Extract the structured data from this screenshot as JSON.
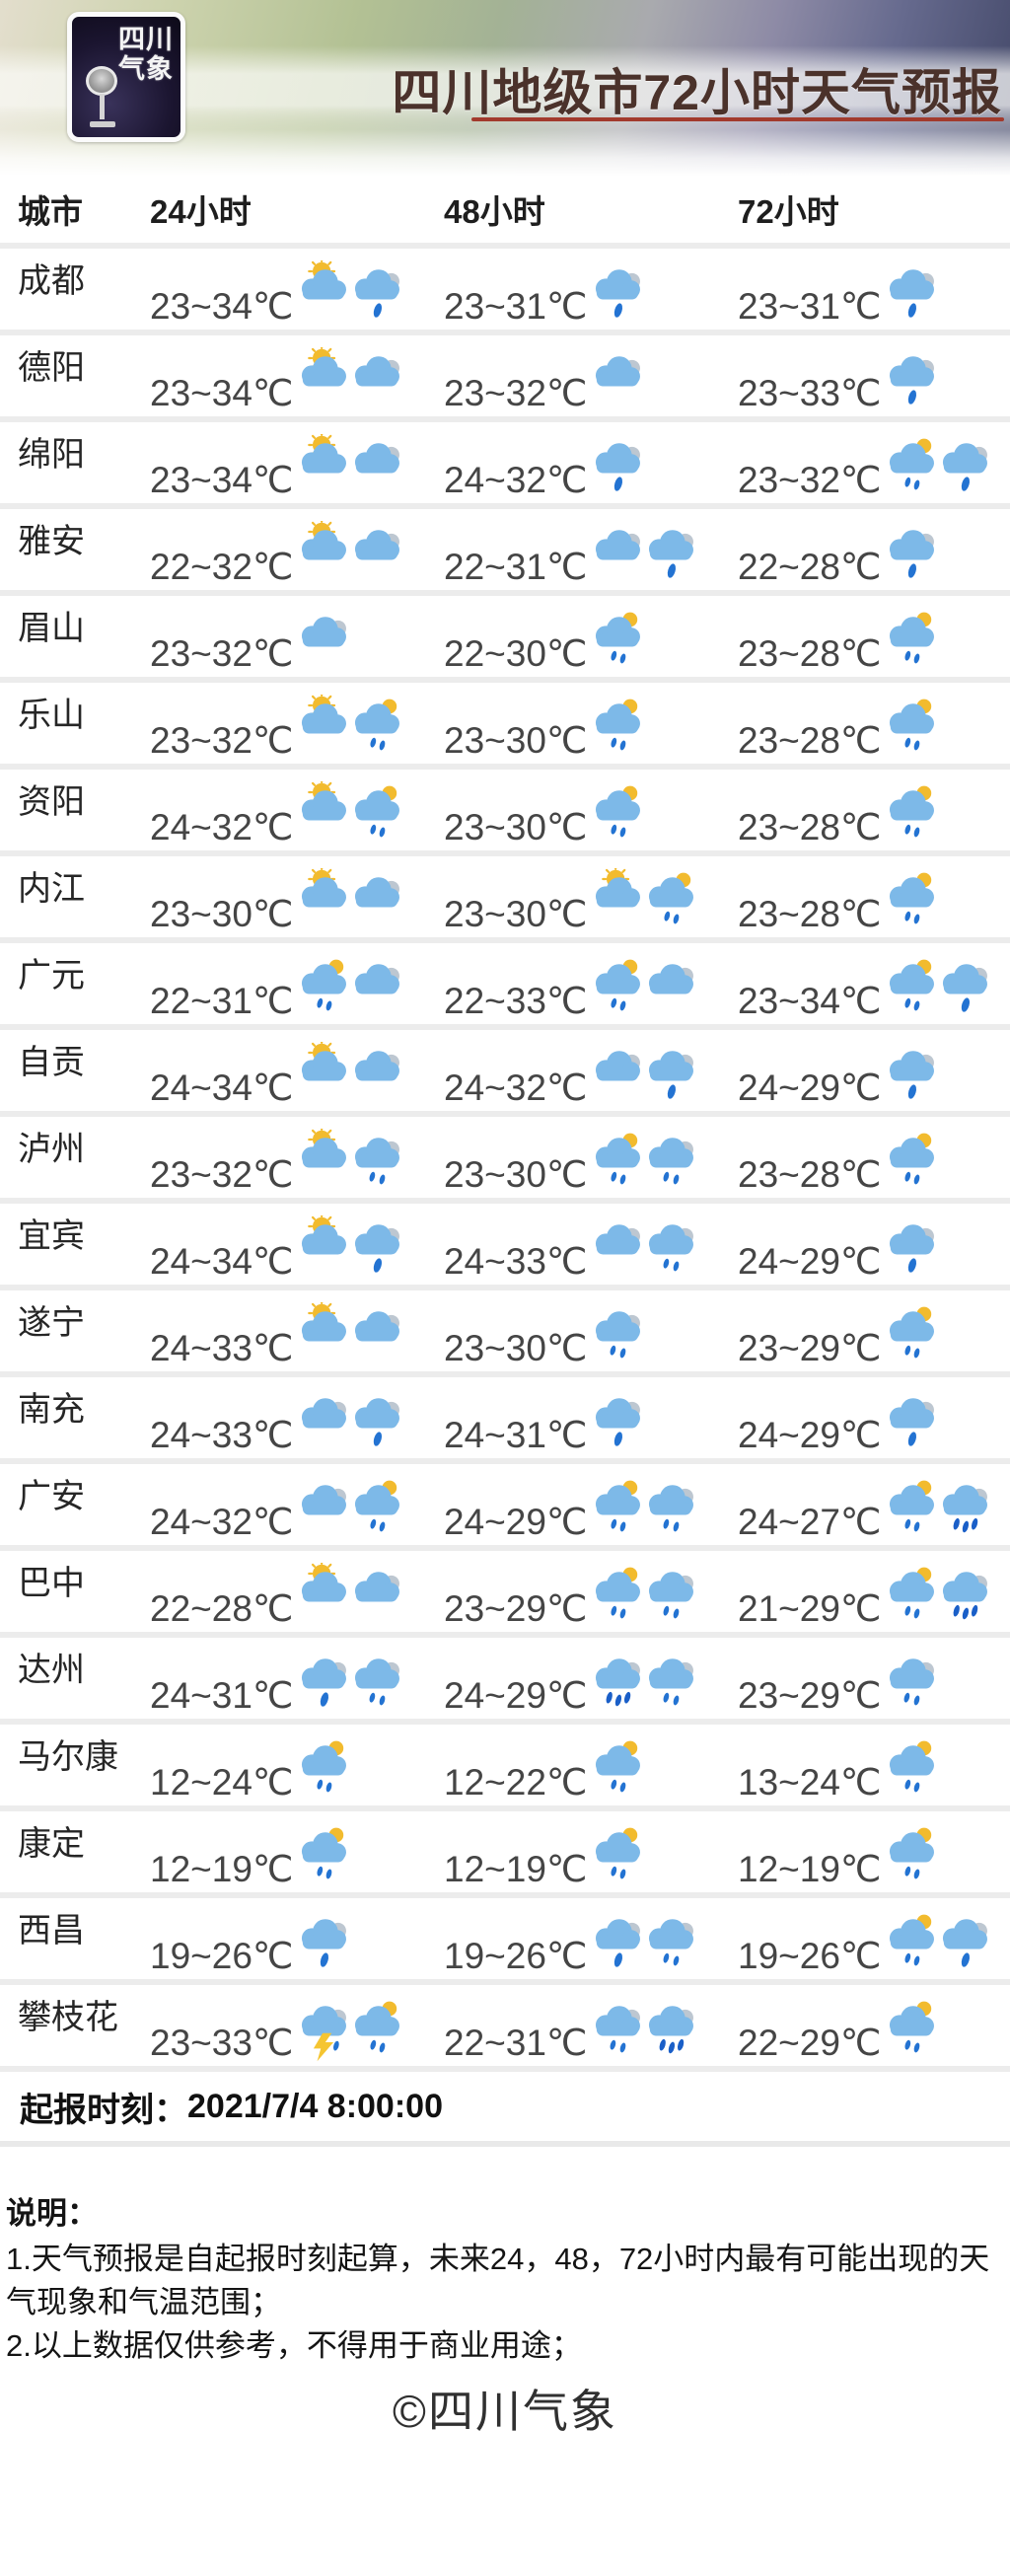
{
  "header": {
    "logo_line1": "四川",
    "logo_line2": "气象",
    "title": "四川地级市72小时天气预报",
    "underline_color": "#a23a2d"
  },
  "table": {
    "columns": [
      "城市",
      "24小时",
      "48小时",
      "72小时"
    ],
    "icon_colors": {
      "cloud": "#7db9e8",
      "cloud_shadow": "#bdc7d1",
      "sun": "#f2bb2e",
      "drop": "#2373d2",
      "drop_heavy": "#1a5fc8",
      "lightning": "#f5c531"
    },
    "icon_names": {
      "partly": "sun-behind-cloud-icon",
      "cloudy": "cloud-icon",
      "rain1": "rain-cloud-icon",
      "rain2": "light-rain-cloud-icon",
      "heavy": "heavy-rain-cloud-icon",
      "shower": "sun-shower-cloud-icon",
      "thunder": "thunderstorm-cloud-icon"
    },
    "rows": [
      {
        "city": "成都",
        "f24": {
          "temp": "23~34℃",
          "icons": [
            "partly",
            "rain1"
          ]
        },
        "f48": {
          "temp": "23~31℃",
          "icons": [
            "rain1"
          ]
        },
        "f72": {
          "temp": "23~31℃",
          "icons": [
            "rain1"
          ]
        }
      },
      {
        "city": "德阳",
        "f24": {
          "temp": "23~34℃",
          "icons": [
            "partly",
            "cloudy"
          ]
        },
        "f48": {
          "temp": "23~32℃",
          "icons": [
            "cloudy"
          ]
        },
        "f72": {
          "temp": "23~33℃",
          "icons": [
            "rain1"
          ]
        }
      },
      {
        "city": "绵阳",
        "f24": {
          "temp": "23~34℃",
          "icons": [
            "partly",
            "cloudy"
          ]
        },
        "f48": {
          "temp": "24~32℃",
          "icons": [
            "rain1"
          ]
        },
        "f72": {
          "temp": "23~32℃",
          "icons": [
            "shower",
            "rain1"
          ]
        }
      },
      {
        "city": "雅安",
        "f24": {
          "temp": "22~32℃",
          "icons": [
            "partly",
            "cloudy"
          ]
        },
        "f48": {
          "temp": "22~31℃",
          "icons": [
            "cloudy",
            "rain1"
          ]
        },
        "f72": {
          "temp": "22~28℃",
          "icons": [
            "rain1"
          ]
        }
      },
      {
        "city": "眉山",
        "f24": {
          "temp": "23~32℃",
          "icons": [
            "cloudy"
          ]
        },
        "f48": {
          "temp": "22~30℃",
          "icons": [
            "shower"
          ]
        },
        "f72": {
          "temp": "23~28℃",
          "icons": [
            "shower"
          ]
        }
      },
      {
        "city": "乐山",
        "f24": {
          "temp": "23~32℃",
          "icons": [
            "partly",
            "shower"
          ]
        },
        "f48": {
          "temp": "23~30℃",
          "icons": [
            "shower"
          ]
        },
        "f72": {
          "temp": "23~28℃",
          "icons": [
            "shower"
          ]
        }
      },
      {
        "city": "资阳",
        "f24": {
          "temp": "24~32℃",
          "icons": [
            "partly",
            "shower"
          ]
        },
        "f48": {
          "temp": "23~30℃",
          "icons": [
            "shower"
          ]
        },
        "f72": {
          "temp": "23~28℃",
          "icons": [
            "shower"
          ]
        }
      },
      {
        "city": "内江",
        "f24": {
          "temp": "23~30℃",
          "icons": [
            "partly",
            "cloudy"
          ]
        },
        "f48": {
          "temp": "23~30℃",
          "icons": [
            "partly",
            "shower"
          ]
        },
        "f72": {
          "temp": "23~28℃",
          "icons": [
            "shower"
          ]
        }
      },
      {
        "city": "广元",
        "f24": {
          "temp": "22~31℃",
          "icons": [
            "shower",
            "cloudy"
          ]
        },
        "f48": {
          "temp": "22~33℃",
          "icons": [
            "shower",
            "cloudy"
          ]
        },
        "f72": {
          "temp": "23~34℃",
          "icons": [
            "shower",
            "rain1"
          ]
        }
      },
      {
        "city": "自贡",
        "f24": {
          "temp": "24~34℃",
          "icons": [
            "partly",
            "cloudy"
          ]
        },
        "f48": {
          "temp": "24~32℃",
          "icons": [
            "cloudy",
            "rain1"
          ]
        },
        "f72": {
          "temp": "24~29℃",
          "icons": [
            "rain1"
          ]
        }
      },
      {
        "city": "泸州",
        "f24": {
          "temp": "23~32℃",
          "icons": [
            "partly",
            "rain2"
          ]
        },
        "f48": {
          "temp": "23~30℃",
          "icons": [
            "shower",
            "rain2"
          ]
        },
        "f72": {
          "temp": "23~28℃",
          "icons": [
            "shower"
          ]
        }
      },
      {
        "city": "宜宾",
        "f24": {
          "temp": "24~34℃",
          "icons": [
            "partly",
            "rain1"
          ]
        },
        "f48": {
          "temp": "24~33℃",
          "icons": [
            "cloudy",
            "rain2"
          ]
        },
        "f72": {
          "temp": "24~29℃",
          "icons": [
            "rain1"
          ]
        }
      },
      {
        "city": "遂宁",
        "f24": {
          "temp": "24~33℃",
          "icons": [
            "partly",
            "cloudy"
          ]
        },
        "f48": {
          "temp": "23~30℃",
          "icons": [
            "rain2"
          ]
        },
        "f72": {
          "temp": "23~29℃",
          "icons": [
            "shower"
          ]
        }
      },
      {
        "city": "南充",
        "f24": {
          "temp": "24~33℃",
          "icons": [
            "cloudy",
            "rain1"
          ]
        },
        "f48": {
          "temp": "24~31℃",
          "icons": [
            "rain1"
          ]
        },
        "f72": {
          "temp": "24~29℃",
          "icons": [
            "rain1"
          ]
        }
      },
      {
        "city": "广安",
        "f24": {
          "temp": "24~32℃",
          "icons": [
            "cloudy",
            "shower"
          ]
        },
        "f48": {
          "temp": "24~29℃",
          "icons": [
            "shower",
            "rain2"
          ]
        },
        "f72": {
          "temp": "24~27℃",
          "icons": [
            "shower",
            "heavy"
          ]
        }
      },
      {
        "city": "巴中",
        "f24": {
          "temp": "22~28℃",
          "icons": [
            "partly",
            "cloudy"
          ]
        },
        "f48": {
          "temp": "23~29℃",
          "icons": [
            "shower",
            "rain2"
          ]
        },
        "f72": {
          "temp": "21~29℃",
          "icons": [
            "shower",
            "heavy"
          ]
        }
      },
      {
        "city": "达州",
        "f24": {
          "temp": "24~31℃",
          "icons": [
            "rain1",
            "rain2"
          ]
        },
        "f48": {
          "temp": "24~29℃",
          "icons": [
            "heavy",
            "rain2"
          ]
        },
        "f72": {
          "temp": "23~29℃",
          "icons": [
            "rain2"
          ]
        }
      },
      {
        "city": "马尔康",
        "f24": {
          "temp": "12~24℃",
          "icons": [
            "shower"
          ]
        },
        "f48": {
          "temp": "12~22℃",
          "icons": [
            "shower"
          ]
        },
        "f72": {
          "temp": "13~24℃",
          "icons": [
            "shower"
          ]
        }
      },
      {
        "city": "康定",
        "f24": {
          "temp": "12~19℃",
          "icons": [
            "shower"
          ]
        },
        "f48": {
          "temp": "12~19℃",
          "icons": [
            "shower"
          ]
        },
        "f72": {
          "temp": "12~19℃",
          "icons": [
            "shower"
          ]
        }
      },
      {
        "city": "西昌",
        "f24": {
          "temp": "19~26℃",
          "icons": [
            "rain1"
          ]
        },
        "f48": {
          "temp": "19~26℃",
          "icons": [
            "rain1",
            "rain2"
          ]
        },
        "f72": {
          "temp": "19~26℃",
          "icons": [
            "shower",
            "rain1"
          ]
        }
      },
      {
        "city": "攀枝花",
        "f24": {
          "temp": "23~33℃",
          "icons": [
            "thunder",
            "shower"
          ]
        },
        "f48": {
          "temp": "22~31℃",
          "icons": [
            "rain2",
            "heavy"
          ]
        },
        "f72": {
          "temp": "22~29℃",
          "icons": [
            "shower"
          ]
        }
      }
    ]
  },
  "footer": {
    "issue_label": "起报时刻：",
    "issue_time": "2021/7/4 8:00:00",
    "copyright": "©四川气象"
  },
  "notes": {
    "heading": "说明：",
    "line1": "1.天气预报是自起报时刻起算，未来24，48，72小时内最有可能出现的天气现象和气温范围；",
    "line2": "2.以上数据仅供参考，不得用于商业用途；"
  }
}
